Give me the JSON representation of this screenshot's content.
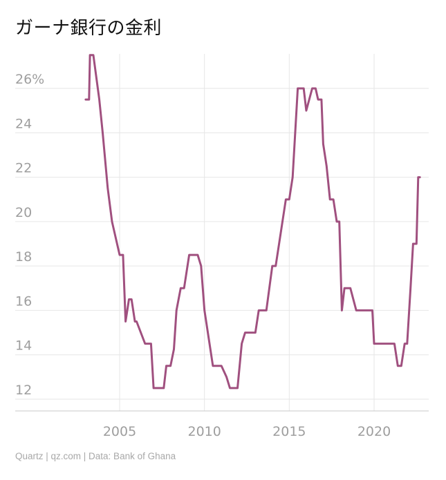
{
  "chart_data": {
    "type": "line",
    "title": "ガーナ銀行の金利",
    "source": "Quartz | qz.com | Data: Bank of Ghana",
    "xlabel": "",
    "ylabel": "",
    "y_unit": "%",
    "xlim": [
      2002,
      2023
    ],
    "ylim": [
      11.5,
      27.5
    ],
    "x_ticks": [
      2005,
      2010,
      2015,
      2020
    ],
    "y_ticks": [
      12,
      14,
      16,
      18,
      20,
      22,
      24,
      26
    ],
    "y_tick_labels": [
      "12",
      "14",
      "16",
      "18",
      "20",
      "22",
      "24",
      "26%"
    ],
    "grid": true,
    "line_color": "#a0507f",
    "series": [
      {
        "x": [
          2003.0,
          2003.2,
          2003.25,
          2003.45,
          2003.8,
          2004.0,
          2004.3,
          2004.55,
          2005.0,
          2005.2,
          2005.35,
          2005.55,
          2005.7,
          2005.9,
          2006.0,
          2006.5,
          2006.7,
          2006.85,
          2007.0,
          2007.6,
          2007.75,
          2008.0,
          2008.2,
          2008.35,
          2008.6,
          2008.8,
          2009.1,
          2009.35,
          2009.6,
          2009.8,
          2010.0,
          2010.5,
          2011.0,
          2011.3,
          2011.5,
          2011.95,
          2012.2,
          2012.4,
          2012.55,
          2012.8,
          2013.0,
          2013.2,
          2013.5,
          2013.65,
          2014.0,
          2014.2,
          2014.4,
          2014.8,
          2015.0,
          2015.2,
          2015.5,
          2015.65,
          2015.85,
          2016.0,
          2016.35,
          2016.55,
          2016.7,
          2016.9,
          2017.0,
          2017.2,
          2017.4,
          2017.6,
          2017.8,
          2017.95,
          2018.1,
          2018.25,
          2018.4,
          2018.6,
          2018.95,
          2019.1,
          2019.6,
          2019.9,
          2020.0,
          2020.6,
          2021.2,
          2021.4,
          2021.6,
          2021.8,
          2021.95,
          2022.15,
          2022.3,
          2022.5,
          2022.6,
          2022.7
        ],
        "y": [
          25.5,
          25.5,
          27.5,
          27.5,
          25.5,
          24.0,
          21.5,
          20.0,
          18.5,
          18.5,
          15.5,
          16.5,
          16.5,
          15.5,
          15.5,
          14.5,
          14.5,
          14.5,
          12.5,
          12.5,
          13.5,
          13.5,
          14.25,
          16.0,
          17.0,
          17.0,
          18.5,
          18.5,
          18.5,
          18.0,
          16.0,
          13.5,
          13.5,
          13.0,
          12.5,
          12.5,
          14.5,
          15.0,
          15.0,
          15.0,
          15.0,
          16.0,
          16.0,
          16.0,
          18.0,
          18.0,
          19.0,
          21.0,
          21.0,
          22.0,
          26.0,
          26.0,
          26.0,
          25.0,
          26.0,
          26.0,
          25.5,
          25.5,
          23.5,
          22.5,
          21.0,
          21.0,
          20.0,
          20.0,
          16.0,
          17.0,
          17.0,
          17.0,
          16.0,
          16.0,
          16.0,
          16.0,
          14.5,
          14.5,
          14.5,
          13.5,
          13.5,
          14.5,
          14.5,
          17.0,
          19.0,
          19.0,
          22.0,
          22.0
        ]
      }
    ]
  }
}
